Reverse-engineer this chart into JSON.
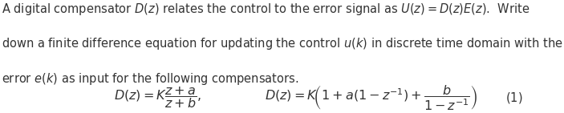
{
  "line1": "A digital compensator $D(z)$ relates the control to the error signal as $U(z) = D(z)E(z)$.  Write",
  "line2": "down a finite difference equation for updating the control $u(k)$ in discrete time domain with the",
  "line3": "error $e(k)$ as input for the following compensators.",
  "formula1": "$D(z) = K\\dfrac{z+a}{z+b},$",
  "formula2": "$D(z) = K\\!\\left(1 + a(1 - z^{-1}) + \\dfrac{b}{1 - z^{-1}}\\right)$",
  "label": "$(1)$",
  "bg_color": "#ffffff",
  "text_color": "#333333",
  "body_fontsize": 10.5,
  "eq_fontsize": 11.5,
  "label_fontsize": 10.5
}
